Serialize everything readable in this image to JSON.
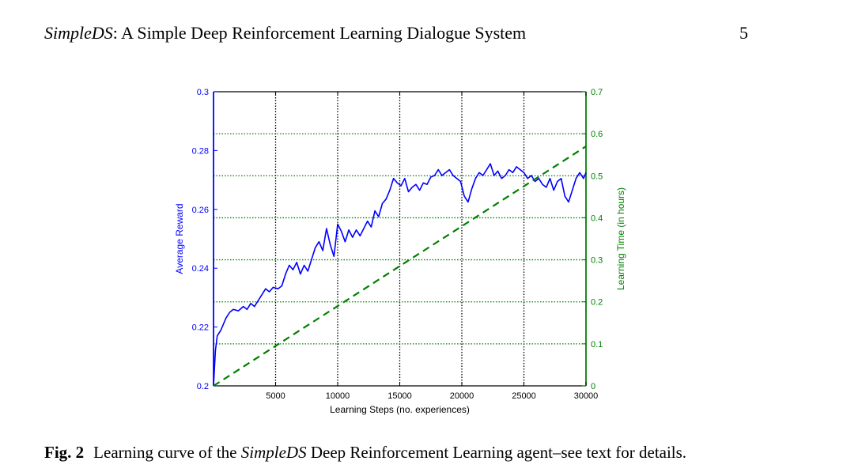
{
  "header": {
    "title_italic": "SimpleDS",
    "title_rest": ": A Simple Deep Reinforcement Learning Dialogue System",
    "page_number": "5"
  },
  "caption": {
    "label": "Fig. 2",
    "text_before": "Learning curve of the ",
    "text_italic": "SimpleDS",
    "text_after": " Deep Reinforcement Learning agent–see text for details."
  },
  "colors": {
    "reward": "#0000ff",
    "time": "#008000",
    "grid_x": "#000000",
    "grid_y": "#008000"
  },
  "chart_data": {
    "type": "line",
    "title": "",
    "xlabel": "Learning Steps (no. experiences)",
    "ylabel": "Average Reward",
    "y2label": "Learning Time (in hours)",
    "xlim": [
      0,
      30000
    ],
    "ylim": [
      0.2,
      0.3
    ],
    "y2lim": [
      0,
      0.7
    ],
    "x_ticks": [
      5000,
      10000,
      15000,
      20000,
      25000,
      30000
    ],
    "x_tick_labels": [
      "5000",
      "10000",
      "15000",
      "20000",
      "25000",
      "30000"
    ],
    "y_ticks": [
      0.2,
      0.22,
      0.24,
      0.26,
      0.28,
      0.3
    ],
    "y_tick_labels": [
      "0.2",
      "0.22",
      "0.24",
      "0.26",
      "0.28",
      "0.3"
    ],
    "y2_ticks": [
      0,
      0.1,
      0.2,
      0.3,
      0.4,
      0.5,
      0.6,
      0.7
    ],
    "y2_tick_labels": [
      "0",
      "0.1",
      "0.2",
      "0.3",
      "0.4",
      "0.5",
      "0.6",
      "0.7"
    ],
    "grid": true,
    "series": [
      {
        "axis": "left",
        "style": "solid",
        "x": [
          0,
          150,
          300,
          600,
          1000,
          1300,
          1600,
          2000,
          2400,
          2700,
          3000,
          3300,
          3600,
          3900,
          4200,
          4500,
          4800,
          5200,
          5500,
          5800,
          6100,
          6400,
          6700,
          7000,
          7300,
          7600,
          7900,
          8200,
          8500,
          8800,
          9100,
          9400,
          9700,
          10000,
          10300,
          10600,
          10900,
          11200,
          11500,
          11800,
          12100,
          12400,
          12700,
          13000,
          13300,
          13600,
          13900,
          14200,
          14500,
          14800,
          15100,
          15400,
          15700,
          16000,
          16300,
          16600,
          16900,
          17200,
          17500,
          17800,
          18100,
          18400,
          18700,
          19000,
          19300,
          19600,
          19900,
          20200,
          20500,
          20800,
          21100,
          21400,
          21700,
          22000,
          22300,
          22600,
          22900,
          23200,
          23500,
          23800,
          24100,
          24400,
          24700,
          25000,
          25300,
          25600,
          25900,
          26200,
          26500,
          26800,
          27100,
          27400,
          27700,
          28000,
          28300,
          28600,
          28900,
          29200,
          29500,
          29800,
          30000
        ],
        "values": [
          0.2,
          0.212,
          0.217,
          0.219,
          0.223,
          0.225,
          0.226,
          0.2255,
          0.227,
          0.226,
          0.228,
          0.227,
          0.229,
          0.231,
          0.233,
          0.232,
          0.2335,
          0.233,
          0.234,
          0.238,
          0.241,
          0.2395,
          0.242,
          0.238,
          0.241,
          0.239,
          0.243,
          0.247,
          0.249,
          0.246,
          0.2535,
          0.248,
          0.244,
          0.255,
          0.2525,
          0.249,
          0.253,
          0.2505,
          0.253,
          0.251,
          0.2535,
          0.256,
          0.254,
          0.2595,
          0.2575,
          0.262,
          0.2635,
          0.2665,
          0.2705,
          0.269,
          0.268,
          0.2705,
          0.266,
          0.2675,
          0.2685,
          0.2665,
          0.269,
          0.2685,
          0.271,
          0.2715,
          0.2735,
          0.2715,
          0.2725,
          0.2735,
          0.2715,
          0.2705,
          0.2695,
          0.2645,
          0.2625,
          0.267,
          0.2705,
          0.2725,
          0.2715,
          0.2735,
          0.2755,
          0.2715,
          0.273,
          0.2705,
          0.2715,
          0.2735,
          0.2725,
          0.2745,
          0.2735,
          0.2725,
          0.2705,
          0.2715,
          0.2695,
          0.2705,
          0.2685,
          0.2675,
          0.2705,
          0.2665,
          0.2695,
          0.2705,
          0.2645,
          0.2625,
          0.2665,
          0.2705,
          0.2725,
          0.2705,
          0.2725
        ]
      },
      {
        "axis": "right",
        "style": "dashed",
        "x": [
          0,
          30000
        ],
        "values": [
          0,
          0.57
        ]
      }
    ]
  }
}
